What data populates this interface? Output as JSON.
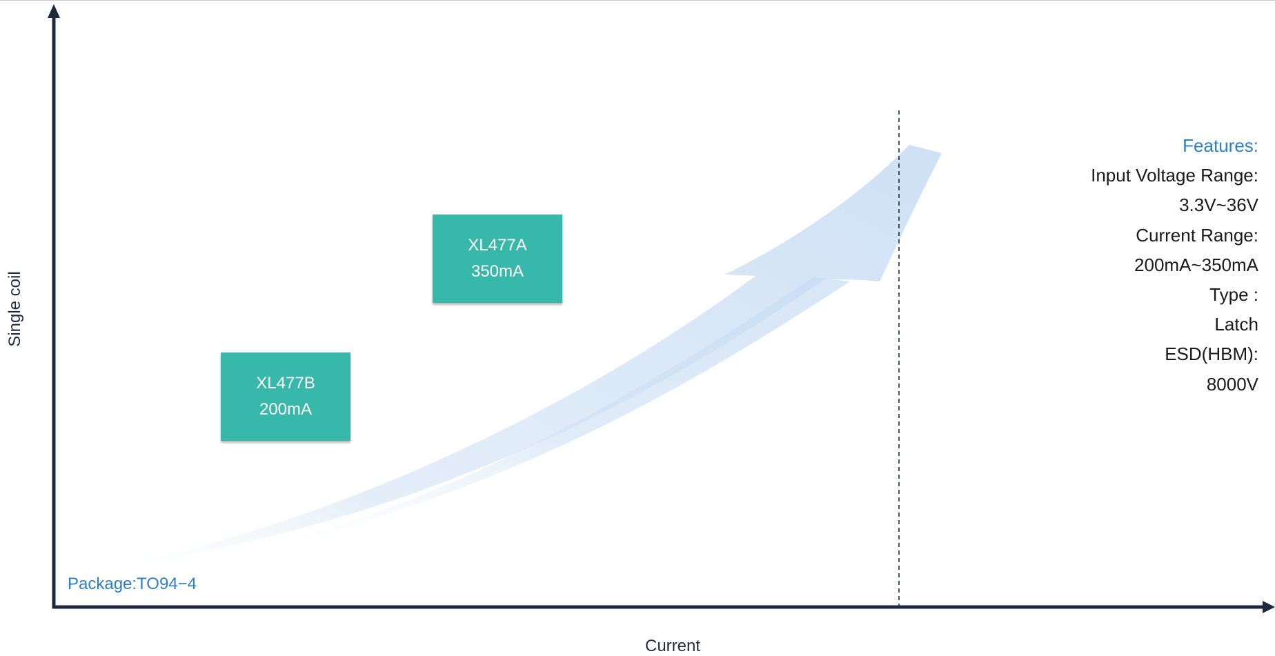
{
  "axes": {
    "y_label": "Single coil",
    "x_label": "Current"
  },
  "products": [
    {
      "name": "XL477B",
      "current": "200mA"
    },
    {
      "name": "XL477A",
      "current": "350mA"
    }
  ],
  "package_label": "Package:TO94−4",
  "features": {
    "title": "Features:",
    "lines": [
      "Input Voltage Range:",
      "3.3V~36V",
      "Current  Range:",
      "200mA~350mA",
      "Type :",
      "Latch",
      "ESD(HBM):",
      "8000V"
    ]
  },
  "colors": {
    "axis": "#1f2a3c",
    "box": "#38b8aa",
    "feature_title": "#2f7fc4",
    "arrow": "#d6e6f6"
  }
}
